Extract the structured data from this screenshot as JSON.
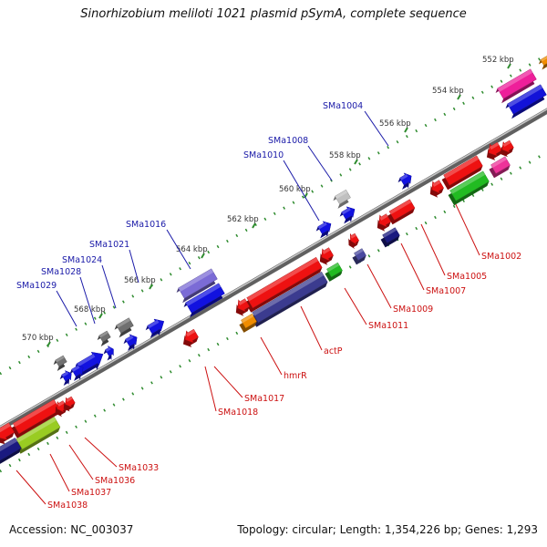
{
  "title": "Sinorhizobium meliloti 1021 plasmid pSymA, complete sequence",
  "footer": {
    "accession": "Accession: NC_003037",
    "summary": "Topology: circular; Length: 1,354,226 bp; Genes: 1,293"
  },
  "colors": {
    "backbone": "#808080",
    "tick": "#2e8b2e",
    "forward_label": "#1a1aa8",
    "reverse_label": "#cc1111"
  },
  "ticks": [
    "552 kbp",
    "554 kbp",
    "556 kbp",
    "558 kbp",
    "560 kbp",
    "562 kbp",
    "564 kbp",
    "566 kbp",
    "568 kbp",
    "570 kbp"
  ],
  "forward_labels": [
    "SMa1004",
    "SMa1008",
    "SMa1010",
    "SMa1016",
    "SMa1021",
    "SMa1024",
    "SMa1028",
    "SMa1029"
  ],
  "reverse_labels": [
    "SMa1002",
    "SMa1005",
    "SMa1007",
    "SMa1009",
    "SMa1011",
    "actP",
    "hmrR",
    "SMa1017",
    "SMa1018",
    "SMa1033",
    "SMa1036",
    "SMa1037",
    "SMa1038"
  ]
}
